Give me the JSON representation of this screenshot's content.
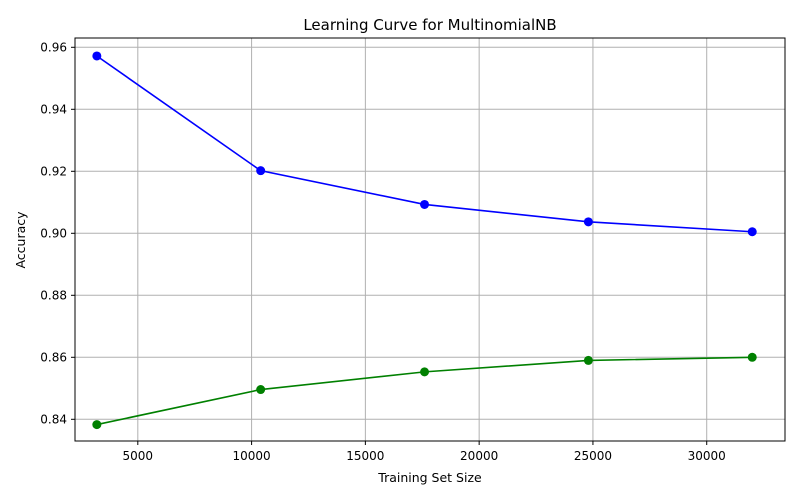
{
  "chart_data": {
    "type": "line",
    "title": "Learning Curve for MultinomialNB",
    "xlabel": "Training Set Size",
    "ylabel": "Accuracy",
    "x": [
      3200,
      10400,
      17600,
      24800,
      32000
    ],
    "xlim": [
      2240,
      33440
    ],
    "ylim": [
      0.833,
      0.963
    ],
    "xticks": [
      5000,
      10000,
      15000,
      20000,
      25000,
      30000
    ],
    "xtick_labels": [
      "5000",
      "10000",
      "15000",
      "20000",
      "25000",
      "30000"
    ],
    "yticks": [
      0.84,
      0.86,
      0.88,
      0.9,
      0.92,
      0.94,
      0.96
    ],
    "ytick_labels": [
      "0.84",
      "0.86",
      "0.88",
      "0.90",
      "0.92",
      "0.94",
      "0.96"
    ],
    "grid": true,
    "series": [
      {
        "color": "#0000ff",
        "marker": "circle",
        "values": [
          0.9572,
          0.9202,
          0.9093,
          0.9037,
          0.9005
        ]
      },
      {
        "color": "#008000",
        "marker": "circle",
        "values": [
          0.8383,
          0.8496,
          0.8553,
          0.859,
          0.86
        ]
      }
    ]
  }
}
